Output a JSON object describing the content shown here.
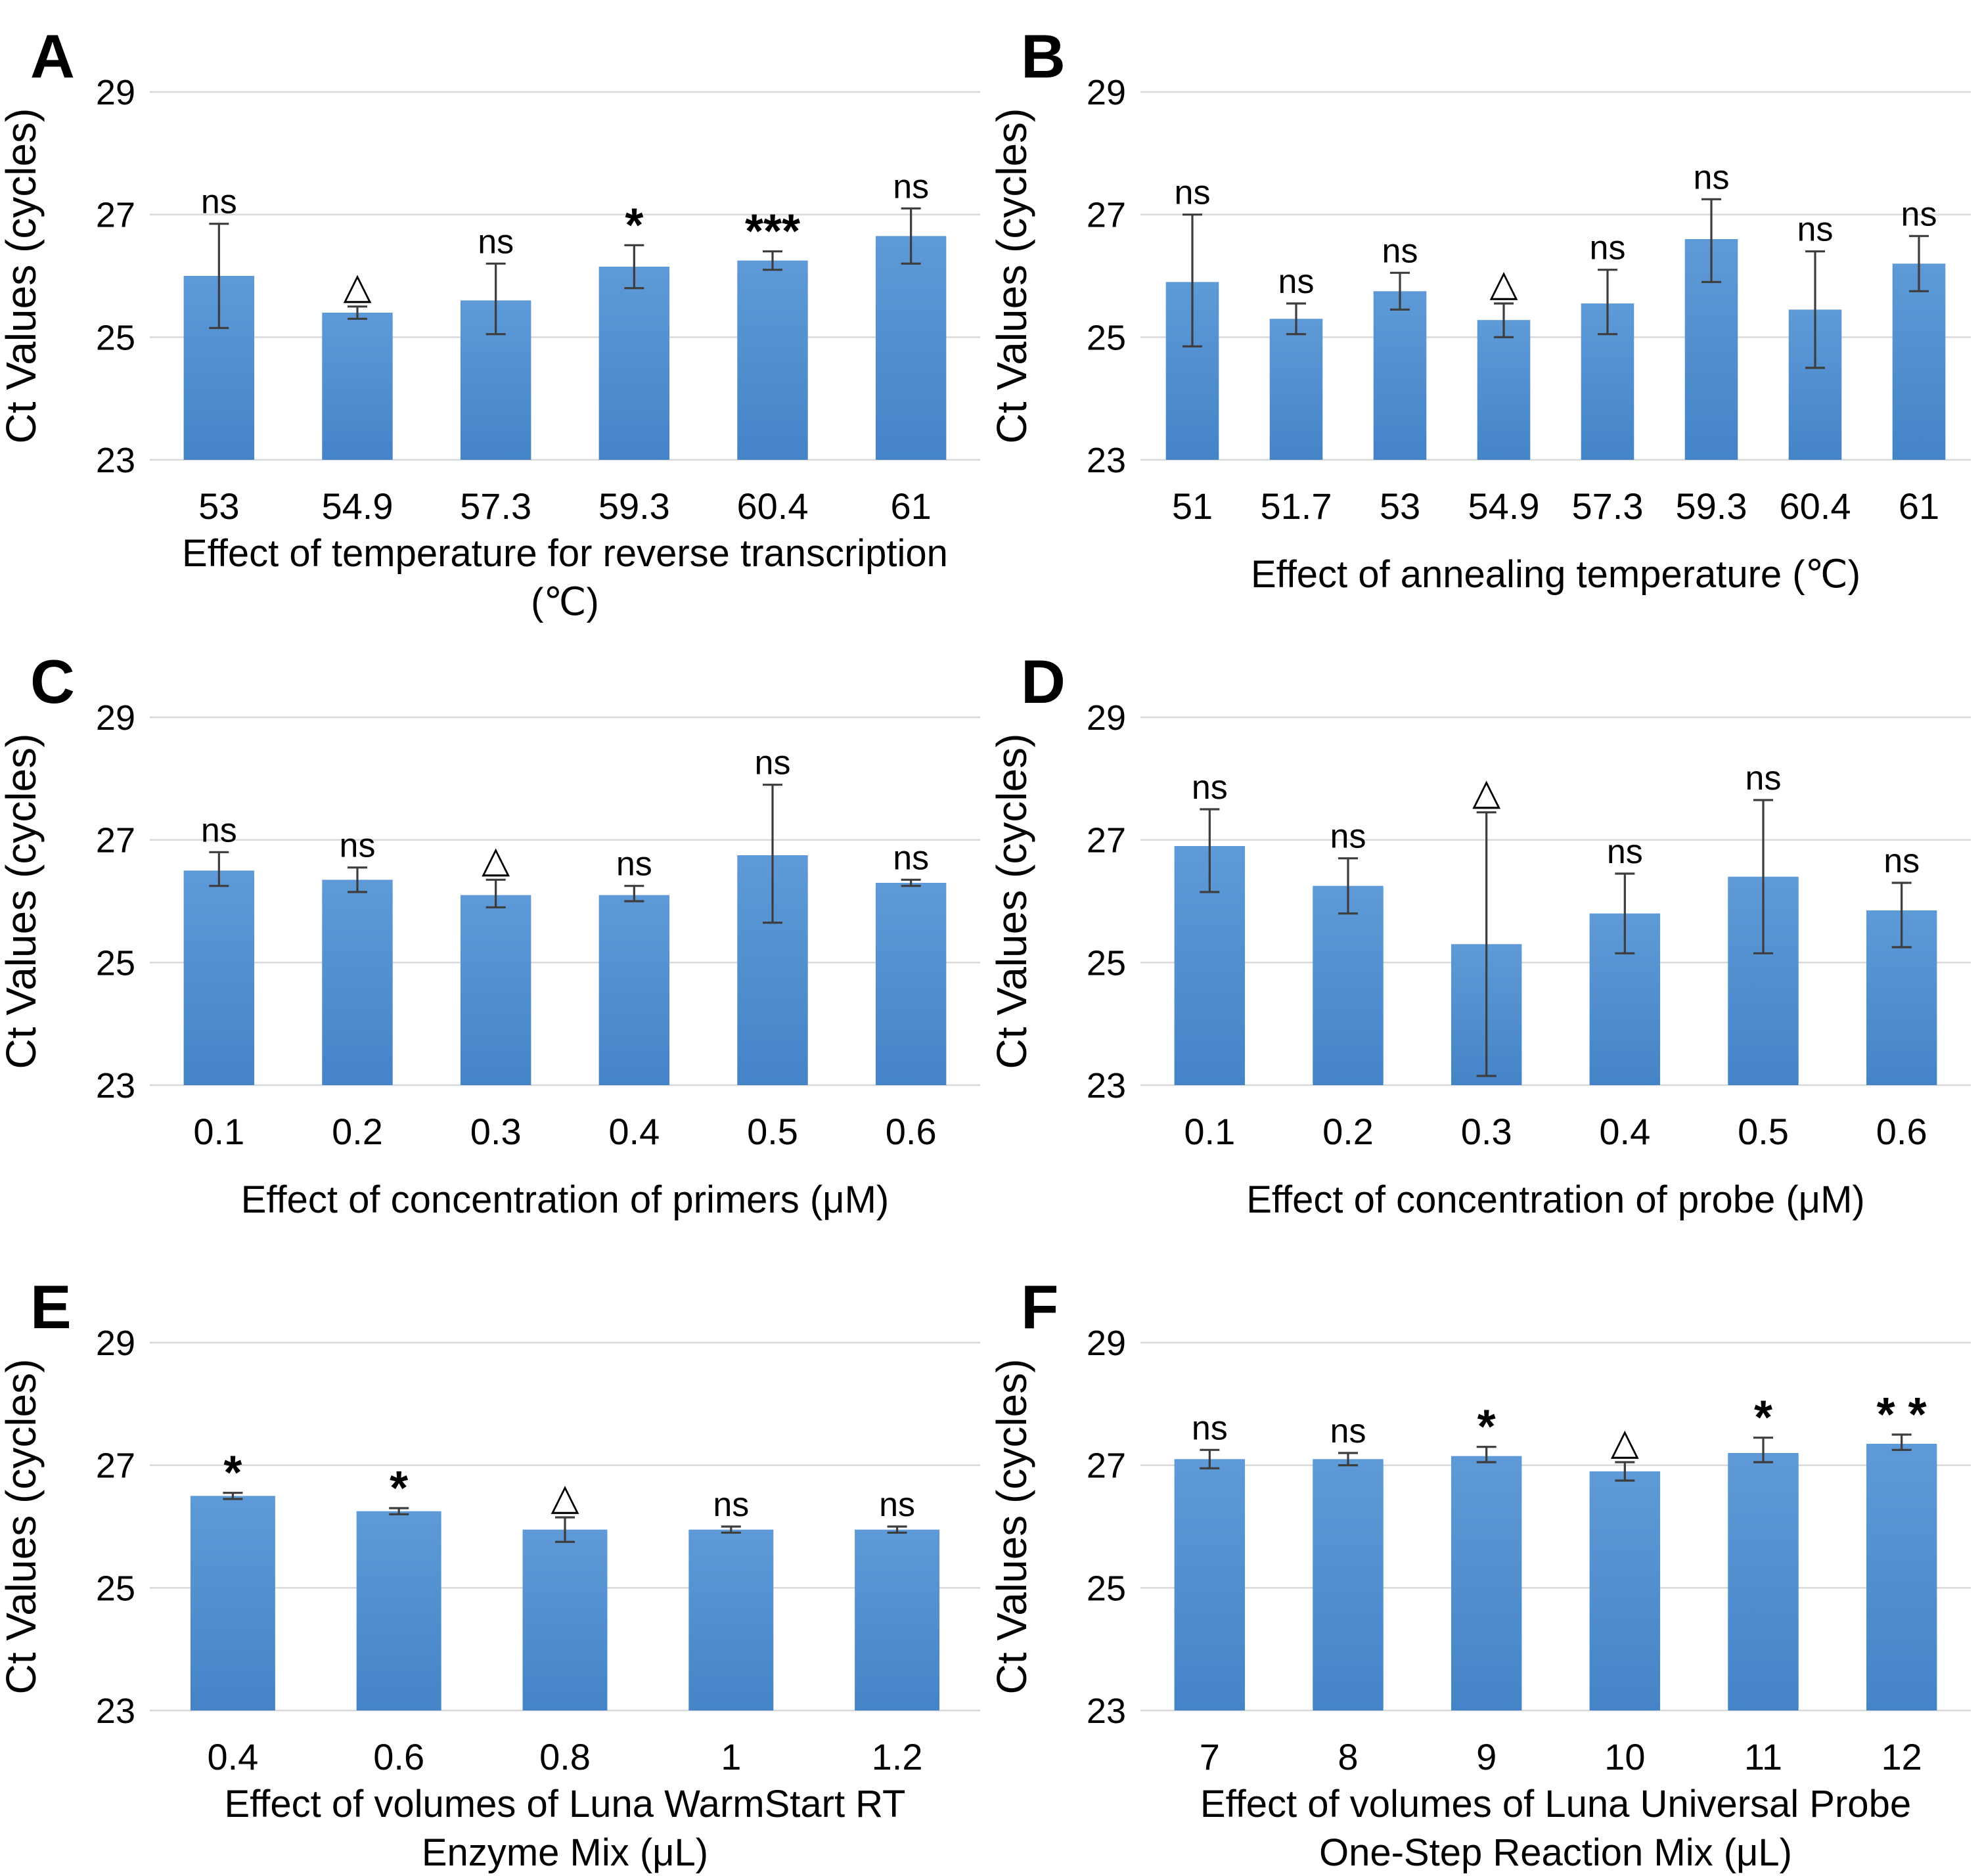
{
  "figure": {
    "y_axis_label": "Ct Values (cycles)",
    "y_ticks": [
      23,
      25,
      27,
      29
    ],
    "ylim": [
      23,
      29.75
    ],
    "baseline": 23,
    "grid": true,
    "legend": "none",
    "background_color": "#ffffff",
    "bar_gradient_top": "#5e9ad7",
    "bar_gradient_bottom": "#4484c7",
    "gridline_color": "#d9d9d9",
    "error_bar_color": "#3d3d3d",
    "text_color": "#000000",
    "significance_symbols": {
      "not_significant": "ns",
      "optimum_marker": "△",
      "significant": "*"
    }
  },
  "chart_data": [
    {
      "panel": "A",
      "type": "bar",
      "title": "Effect of temperature for reverse transcription (℃)",
      "xlabel_lines": [
        "Effect of temperature for reverse transcription",
        "(℃)"
      ],
      "ylabel": "Ct Values (cycles)",
      "categories": [
        "53",
        "54.9",
        "57.3",
        "59.3",
        "60.4",
        "61"
      ],
      "values": [
        26.0,
        25.4,
        25.6,
        26.15,
        26.25,
        26.65
      ],
      "err_low": [
        25.15,
        25.3,
        25.05,
        25.8,
        26.1,
        26.2
      ],
      "err_high": [
        26.85,
        25.5,
        26.2,
        26.5,
        26.4,
        27.1
      ],
      "annotations": [
        "ns",
        "△",
        "ns",
        "*",
        "***",
        "ns"
      ],
      "ylim": [
        23,
        29.75
      ]
    },
    {
      "panel": "B",
      "type": "bar",
      "title": "Effect of annealing temperature (℃)",
      "xlabel_lines": [
        "Effect of annealing temperature (℃)"
      ],
      "ylabel": "Ct Values (cycles)",
      "categories": [
        "51",
        "51.7",
        "53",
        "54.9",
        "57.3",
        "59.3",
        "60.4",
        "61"
      ],
      "values": [
        25.9,
        25.3,
        25.75,
        25.28,
        25.55,
        26.6,
        25.45,
        26.2
      ],
      "err_low": [
        24.85,
        25.05,
        25.45,
        25.0,
        25.05,
        25.9,
        24.5,
        25.75
      ],
      "err_high": [
        27.0,
        25.55,
        26.05,
        25.55,
        26.1,
        27.25,
        26.4,
        26.65
      ],
      "annotations": [
        "ns",
        "ns",
        "ns",
        "△",
        "ns",
        "ns",
        "ns",
        "ns"
      ],
      "ylim": [
        23,
        29.75
      ]
    },
    {
      "panel": "C",
      "type": "bar",
      "title": "Effect of concentration of primers (μM)",
      "xlabel_lines": [
        "Effect of concentration of primers (μM)"
      ],
      "ylabel": "Ct Values (cycles)",
      "categories": [
        "0.1",
        "0.2",
        "0.3",
        "0.4",
        "0.5",
        "0.6"
      ],
      "values": [
        26.5,
        26.35,
        26.1,
        26.1,
        26.75,
        26.3
      ],
      "err_low": [
        26.25,
        26.15,
        25.9,
        26.0,
        25.65,
        26.25
      ],
      "err_high": [
        26.8,
        26.55,
        26.35,
        26.25,
        27.9,
        26.35
      ],
      "annotations": [
        "ns",
        "ns",
        "△",
        "ns",
        "ns",
        "ns"
      ],
      "ylim": [
        23,
        29.75
      ]
    },
    {
      "panel": "D",
      "type": "bar",
      "title": "Effect of concentration of probe (μM)",
      "xlabel_lines": [
        "Effect of concentration of probe (μM)"
      ],
      "ylabel": "Ct Values (cycles)",
      "categories": [
        "0.1",
        "0.2",
        "0.3",
        "0.4",
        "0.5",
        "0.6"
      ],
      "values": [
        26.9,
        26.25,
        25.3,
        25.8,
        26.4,
        25.85
      ],
      "err_low": [
        26.15,
        25.8,
        23.15,
        25.15,
        25.15,
        25.25
      ],
      "err_high": [
        27.5,
        26.7,
        27.45,
        26.45,
        27.65,
        26.3
      ],
      "annotations": [
        "ns",
        "ns",
        "△",
        "ns",
        "ns",
        "ns"
      ],
      "ylim": [
        23,
        29.75
      ]
    },
    {
      "panel": "E",
      "type": "bar",
      "title": "Effect of volumes of Luna WarmStart RT Enzyme Mix (μL)",
      "xlabel_lines": [
        "Effect of volumes of Luna WarmStart RT",
        "Enzyme Mix (μL)"
      ],
      "ylabel": "Ct Values (cycles)",
      "categories": [
        "0.4",
        "0.6",
        "0.8",
        "1",
        "1.2"
      ],
      "values": [
        26.5,
        26.25,
        25.95,
        25.95,
        25.95
      ],
      "err_low": [
        26.45,
        26.2,
        25.75,
        25.9,
        25.9
      ],
      "err_high": [
        26.55,
        26.3,
        26.15,
        26.0,
        26.0
      ],
      "annotations": [
        "*",
        "*",
        "△",
        "ns",
        "ns"
      ],
      "ylim": [
        23,
        29.75
      ]
    },
    {
      "panel": "F",
      "type": "bar",
      "title": "Effect of volumes of Luna Universal Probe One-Step Reaction Mix (μL)",
      "xlabel_lines": [
        "Effect of volumes of Luna Universal Probe",
        "One-Step Reaction Mix (μL)"
      ],
      "ylabel": "Ct Values (cycles)",
      "categories": [
        "7",
        "8",
        "9",
        "10",
        "11",
        "12"
      ],
      "values": [
        27.1,
        27.1,
        27.15,
        26.9,
        27.2,
        27.35
      ],
      "err_low": [
        26.95,
        27.0,
        27.05,
        26.75,
        27.05,
        27.25
      ],
      "err_high": [
        27.25,
        27.2,
        27.3,
        27.05,
        27.45,
        27.5
      ],
      "annotations": [
        "ns",
        "ns",
        "*",
        "△",
        "*",
        "* *"
      ],
      "ylim": [
        23,
        29.75
      ]
    }
  ]
}
